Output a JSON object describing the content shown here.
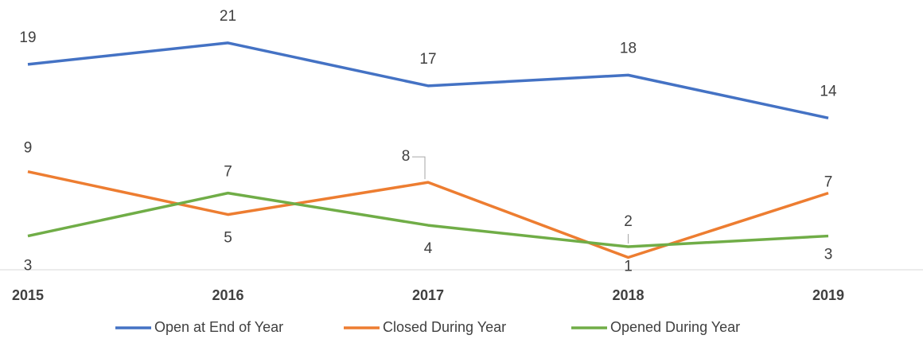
{
  "chart_data": {
    "type": "line",
    "categories": [
      "2015",
      "2016",
      "2017",
      "2018",
      "2019"
    ],
    "series": [
      {
        "name": "Open at End of Year",
        "color": "#4472c4",
        "values": [
          19,
          21,
          17,
          18,
          14
        ]
      },
      {
        "name": "Closed During Year",
        "color": "#ed7d31",
        "values": [
          9,
          5,
          8,
          1,
          7
        ]
      },
      {
        "name": "Opened During Year",
        "color": "#70ad47",
        "values": [
          3,
          7,
          4,
          2,
          3
        ]
      }
    ],
    "ylim": [
      0,
      25
    ],
    "legend": "bottom"
  }
}
